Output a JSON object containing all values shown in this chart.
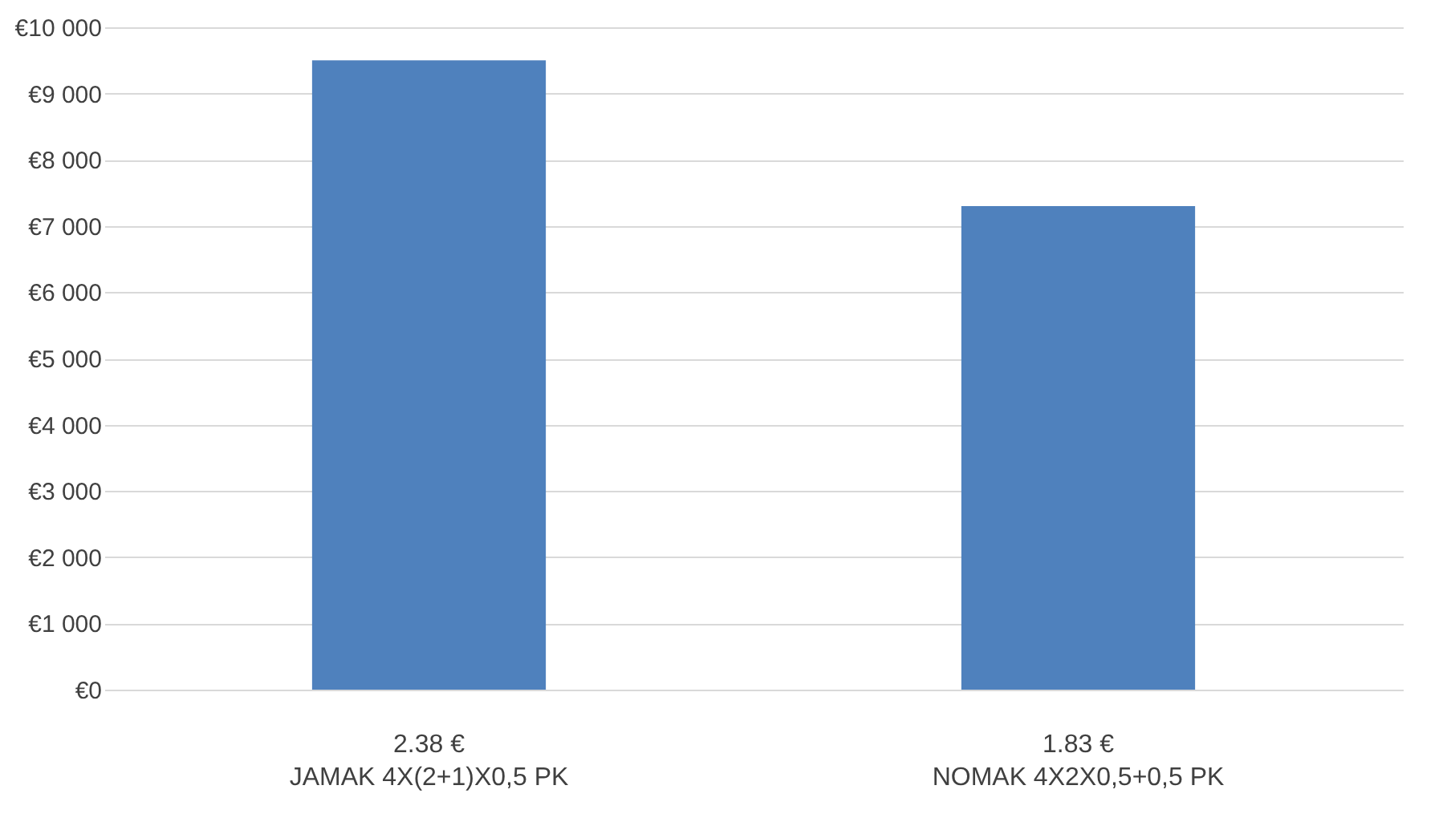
{
  "chart_data": {
    "type": "bar",
    "categories": [
      "JAMAK 4X(2+1)X0,5 PK",
      "NOMAK 4X2X0,5+0,5 PK"
    ],
    "values": [
      9500,
      7300
    ],
    "color": "#4f81bd",
    "annotations": [
      "2.38 €",
      "1.83 €"
    ],
    "ylim": [
      0,
      10000
    ],
    "yticks": [
      {
        "value": 0,
        "label": "€0"
      },
      {
        "value": 1000,
        "label": "€1 000"
      },
      {
        "value": 2000,
        "label": "€2 000"
      },
      {
        "value": 3000,
        "label": "€3 000"
      },
      {
        "value": 4000,
        "label": "€4 000"
      },
      {
        "value": 5000,
        "label": "€5 000"
      },
      {
        "value": 6000,
        "label": "€6 000"
      },
      {
        "value": 7000,
        "label": "€7 000"
      },
      {
        "value": 8000,
        "label": "€8 000"
      },
      {
        "value": 9000,
        "label": "€9 000"
      },
      {
        "value": 10000,
        "label": "€10 000"
      }
    ],
    "grid": true
  }
}
